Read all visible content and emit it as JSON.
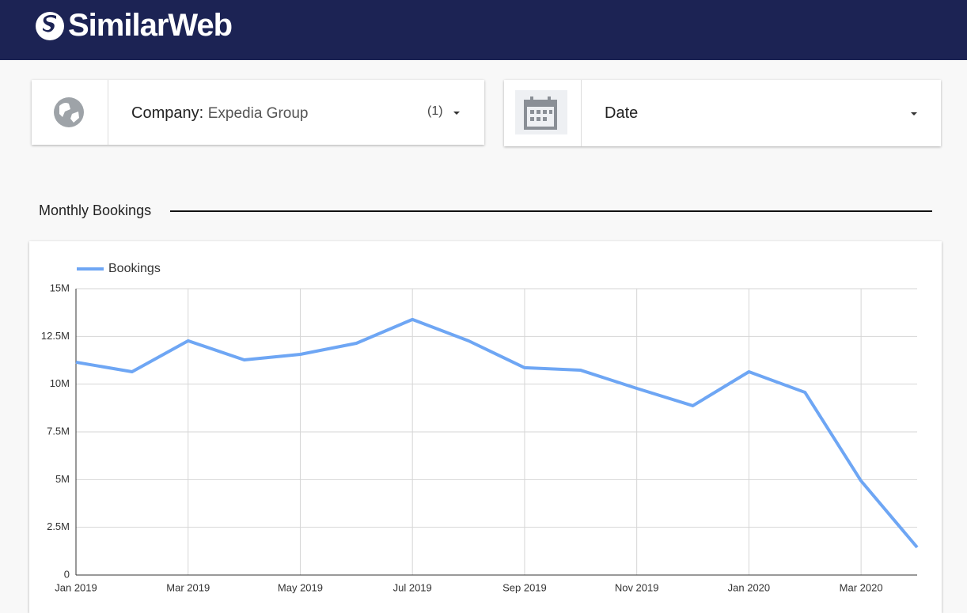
{
  "header": {
    "logo": "SimilarWeb"
  },
  "filters": {
    "company_label": "Company:",
    "company_value": "Expedia Group",
    "company_count": "(1)",
    "date_label": "Date"
  },
  "section_title": "Monthly Bookings",
  "chart_data": {
    "type": "line",
    "categories": [
      "Jan 2019",
      null,
      "Mar 2019",
      null,
      "May 2019",
      null,
      "Jul 2019",
      null,
      "Sep 2019",
      null,
      "Nov 2019",
      null,
      "Jan 2020",
      null,
      "Mar 2020",
      null
    ],
    "series": [
      {
        "name": "Bookings",
        "color": "#6ea6f4",
        "values": [
          11150000,
          10650000,
          12270000,
          11270000,
          11560000,
          12140000,
          13390000,
          12270000,
          10860000,
          10730000,
          9780000,
          8870000,
          10650000,
          9570000,
          4930000,
          1450000
        ]
      }
    ],
    "ylim": [
      0,
      15000000
    ],
    "yticks": [
      0,
      {
        "value": 2500000,
        "label": "2.5M"
      },
      {
        "value": 5000000,
        "label": "5M"
      },
      {
        "value": 7500000,
        "label": "7.5M"
      },
      {
        "value": 10000000,
        "label": "10M"
      },
      {
        "value": 12500000,
        "label": "12.5M"
      },
      {
        "value": 15000000,
        "label": "15M"
      }
    ],
    "grid": true,
    "legend": "top-left"
  }
}
